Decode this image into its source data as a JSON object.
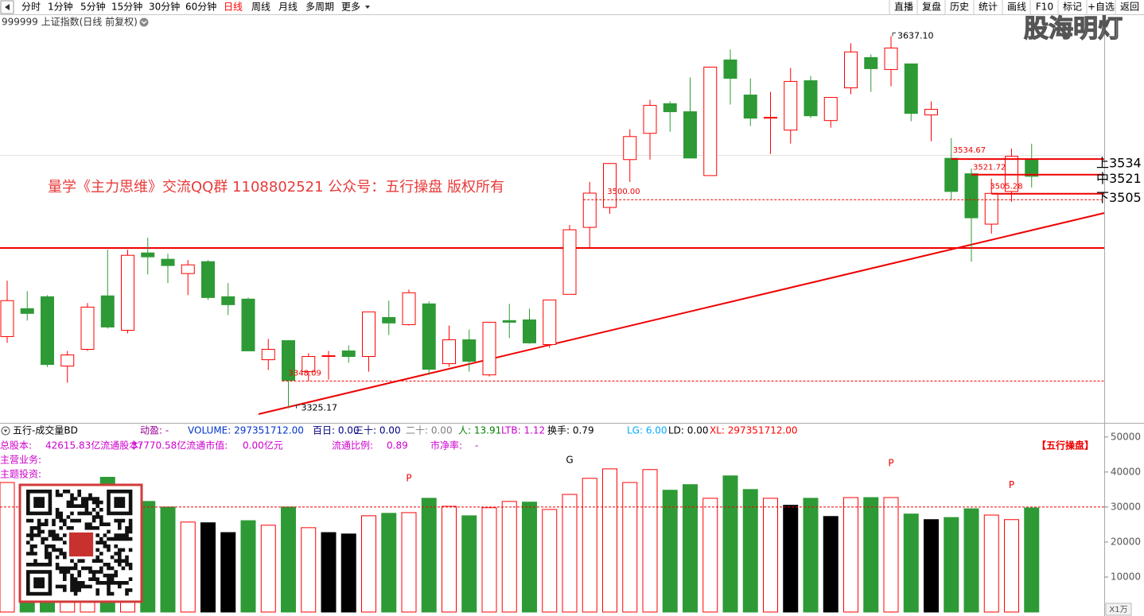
{
  "toolbar": {
    "left": [
      "分时",
      "1分钟",
      "5分钟",
      "15分钟",
      "30分钟",
      "60分钟",
      "日线",
      "周线",
      "月线",
      "多周期",
      "更多"
    ],
    "active": 6,
    "right": [
      "直播",
      "复盘",
      "历史",
      "统计",
      "画线",
      "F10",
      "标记",
      "+自选",
      "返回"
    ]
  },
  "title": "999999 上证指数(日线 前复权)",
  "watermark": "股海明灯",
  "banner": "量学《主力思维》交流QQ群 1108802521  公众号：五行操盘 版权所有",
  "indicator": {
    "items": [
      {
        "text": "五行-成交量BD",
        "color": "#000000"
      },
      {
        "text": "动盈: -",
        "color": "#990099"
      },
      {
        "text": "VOLUME: 297351712.00",
        "color": "#0033cc"
      },
      {
        "text": "百日: 0.00",
        "color": "#000080"
      },
      {
        "text": "三十: 0.00",
        "color": "#000080"
      },
      {
        "text": "二十: 0.00",
        "color": "#808080"
      },
      {
        "text": "人: 13.91",
        "color": "#008000"
      },
      {
        "text": "LTB: 1.12",
        "color": "#cc00cc"
      },
      {
        "text": "换手: 0.79",
        "color": "#000000"
      },
      {
        "text": "LG: 6.00",
        "color": "#00aaff"
      },
      {
        "text": "LD: 0.00",
        "color": "#000000"
      },
      {
        "text": "XL: 297351712.00",
        "color": "#ff0000"
      }
    ],
    "info": [
      "总股本:",
      "42615.83亿流通股本:",
      "37770.58亿流通市值:",
      "0.00亿元",
      "流通比例:",
      "0.89",
      "市净率:",
      "-"
    ],
    "info_color": "#cc00cc",
    "tag": "【五行操盘】",
    "business": "主营业务:",
    "theme": "主题投资:"
  },
  "chart_data": [
    {
      "type": "candlestick",
      "up_color": "#ff0000",
      "down_color": "#2e9a36",
      "ylim": [
        3313,
        3654
      ],
      "open": [
        3385.3,
        3408.7,
        3418.7,
        3360.6,
        3374.6,
        3419.4,
        3390.6,
        3455.4,
        3450.1,
        3438.1,
        3448.1,
        3418.7,
        3416.7,
        3365.9,
        3381.9,
        3355.9,
        3368.6,
        3373.3,
        3368.6,
        3401.3,
        3395.3,
        3412.7,
        3362.6,
        3382.6,
        3353.2,
        3398.7,
        3399.3,
        3378.6,
        3420.7,
        3476.8,
        3493.5,
        3533.6,
        3555.6,
        3580.4,
        3573.7,
        3520.2,
        3617.1,
        3587.7,
        3568.3,
        3558.3,
        3599.7,
        3566.3,
        3593.7,
        3619.1,
        3609.1,
        3613.8,
        3571.0,
        3534.67,
        3521.72,
        3479.5,
        3506.9,
        3533.6
      ],
      "high": [
        3432.1,
        3423.4,
        3420.0,
        3373.3,
        3413.4,
        3458.1,
        3458.1,
        3468.1,
        3454.8,
        3449.4,
        3449.4,
        3430.1,
        3418.0,
        3383.3,
        3381.9,
        3371.3,
        3373.3,
        3377.9,
        3406.0,
        3415.4,
        3424.7,
        3414.7,
        3394.6,
        3391.3,
        3397.3,
        3412.7,
        3408.7,
        3416.0,
        3478.8,
        3514.9,
        3530.3,
        3559.0,
        3583.7,
        3582.4,
        3602.4,
        3611.1,
        3625.8,
        3601.7,
        3590.4,
        3610.4,
        3603.7,
        3585.7,
        3631.0,
        3621.8,
        3637.1,
        3613.8,
        3582.4,
        3551.6,
        3526.3,
        3517.6,
        3542.9,
        3546.9
      ],
      "low": [
        3380.0,
        3398.7,
        3359.9,
        3346.6,
        3373.3,
        3392.0,
        3388.0,
        3437.4,
        3430.1,
        3420.0,
        3416.0,
        3403.3,
        3373.3,
        3357.3,
        3325.17,
        3347.9,
        3349.2,
        3363.3,
        3355.9,
        3386.6,
        3394.6,
        3353.2,
        3359.9,
        3355.9,
        3351.9,
        3384.0,
        3379.3,
        3375.9,
        3420.7,
        3460.1,
        3488.2,
        3514.9,
        3533.6,
        3557.0,
        3534.9,
        3520.2,
        3579.7,
        3561.7,
        3538.3,
        3547.0,
        3568.3,
        3560.3,
        3588.4,
        3590.4,
        3595.0,
        3565.7,
        3549.0,
        3499.5,
        3448.1,
        3471.5,
        3498.2,
        3510.2
      ],
      "close": [
        3415.4,
        3404.7,
        3361.9,
        3369.9,
        3410.0,
        3393.3,
        3453.4,
        3452.1,
        3444.8,
        3445.4,
        3418.0,
        3412.0,
        3373.3,
        3374.6,
        3348.6,
        3368.6,
        3369.3,
        3368.6,
        3406.0,
        3396.7,
        3422.0,
        3357.9,
        3382.6,
        3364.6,
        3397.3,
        3397.3,
        3380.0,
        3416.0,
        3474.8,
        3505.5,
        3530.3,
        3552.9,
        3579.0,
        3573.7,
        3534.9,
        3611.1,
        3601.7,
        3568.3,
        3569.0,
        3599.1,
        3570.3,
        3585.7,
        3623.8,
        3609.8,
        3627.1,
        3572.3,
        3575.7,
        3506.9,
        3484.8,
        3505.28,
        3536.3,
        3519.6
      ],
      "annotations": [
        {
          "value": 3637.1,
          "label": "3637.10",
          "index": 44
        },
        {
          "value": 3325.17,
          "label": "3325.17",
          "index": 14
        },
        {
          "value": 3534.67,
          "label": "3534.67",
          "index": 47
        },
        {
          "value": 3521.72,
          "label": "3521.72",
          "index": 48
        },
        {
          "value": 3505.28,
          "label": "3505.28",
          "index": 49
        }
      ],
      "levels": [
        {
          "value": 3534,
          "label": "上3534",
          "start": 47
        },
        {
          "value": 3521,
          "label": "中3521",
          "start": 48
        },
        {
          "value": 3505,
          "label": "下3505",
          "start": 49
        }
      ],
      "dashed_levels": [
        {
          "value": 3500,
          "label": "3500.00",
          "start": 29
        },
        {
          "value": 3348.09,
          "label": "3348.09",
          "start": 14
        }
      ]
    },
    {
      "type": "bar",
      "up_color": "#ff0000",
      "ylim": [
        0,
        52000
      ],
      "yticks": [
        10000,
        20000,
        30000,
        40000,
        50000
      ],
      "unit_label": "X1万",
      "reference_value": 30000,
      "values": [
        37000,
        30000,
        28000,
        27000,
        29000,
        38500,
        35000,
        31600,
        30000,
        25700,
        25500,
        22700,
        26100,
        24800,
        30000,
        24100,
        22700,
        22300,
        27500,
        28200,
        28400,
        32500,
        30200,
        27500,
        29800,
        31600,
        31400,
        29300,
        33600,
        38200,
        40900,
        37000,
        40700,
        34800,
        36400,
        32500,
        38900,
        35000,
        32500,
        30500,
        32500,
        27300,
        32700,
        32700,
        32700,
        28000,
        26400,
        27000,
        29500,
        27700,
        26400,
        29735.17
      ],
      "colors": [
        "#ff0000",
        "#2e9a36",
        "#2e9a36",
        "#ff0000",
        "#ff0000",
        "#2e9a36",
        "#ff0000",
        "#2e9a36",
        "#2e9a36",
        "#ff0000",
        "#000000",
        "#000000",
        "#2e9a36",
        "#ff0000",
        "#2e9a36",
        "#ff0000",
        "#000000",
        "#000000",
        "#ff0000",
        "#2e9a36",
        "#ff0000",
        "#2e9a36",
        "#ff0000",
        "#2e9a36",
        "#ff0000",
        "#ff0000",
        "#2e9a36",
        "#ff0000",
        "#ff0000",
        "#ff0000",
        "#ff0000",
        "#ff0000",
        "#ff0000",
        "#2e9a36",
        "#2e9a36",
        "#ff0000",
        "#2e9a36",
        "#2e9a36",
        "#ff0000",
        "#000000",
        "#2e9a36",
        "#000000",
        "#ff0000",
        "#2e9a36",
        "#ff0000",
        "#2e9a36",
        "#000000",
        "#2e9a36",
        "#2e9a36",
        "#ff0000",
        "#ff0000",
        "#2e9a36"
      ],
      "markers": [
        {
          "index": 28,
          "label": "G"
        },
        {
          "index": 20,
          "label": "P"
        },
        {
          "index": 44,
          "label": "P"
        },
        {
          "index": 50,
          "label": "P"
        }
      ]
    }
  ]
}
